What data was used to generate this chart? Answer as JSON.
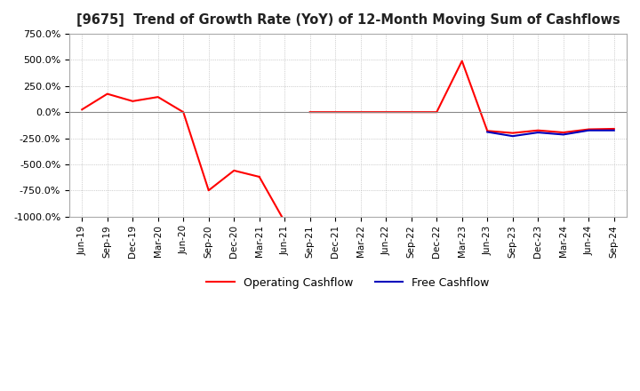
{
  "title": "[9675]  Trend of Growth Rate (YoY) of 12-Month Moving Sum of Cashflows",
  "ylim": [
    -1000,
    750
  ],
  "yticks": [
    -1000,
    -750,
    -500,
    -250,
    0,
    250,
    500,
    750
  ],
  "background_color": "#ffffff",
  "plot_bg_color": "#ffffff",
  "grid_color": "#aaaaaa",
  "legend": [
    "Operating Cashflow",
    "Free Cashflow"
  ],
  "legend_colors": [
    "#ff0000",
    "#0000bb"
  ],
  "x_labels": [
    "Jun-19",
    "Sep-19",
    "Dec-19",
    "Mar-20",
    "Jun-20",
    "Sep-20",
    "Dec-20",
    "Mar-21",
    "Jun-21",
    "Sep-21",
    "Dec-21",
    "Mar-22",
    "Jun-22",
    "Sep-22",
    "Dec-22",
    "Mar-23",
    "Jun-23",
    "Sep-23",
    "Dec-23",
    "Mar-24",
    "Jun-24",
    "Sep-24"
  ],
  "operating_cashflow": [
    25,
    175,
    105,
    145,
    0,
    -750,
    -560,
    -620,
    -1100,
    0,
    0,
    0,
    0,
    0,
    0,
    490,
    -180,
    -200,
    -175,
    -195,
    -165,
    -160
  ],
  "free_cashflow": [
    null,
    null,
    null,
    null,
    null,
    null,
    null,
    null,
    null,
    null,
    null,
    null,
    null,
    null,
    null,
    null,
    -190,
    -230,
    -195,
    -215,
    -175,
    -175
  ]
}
